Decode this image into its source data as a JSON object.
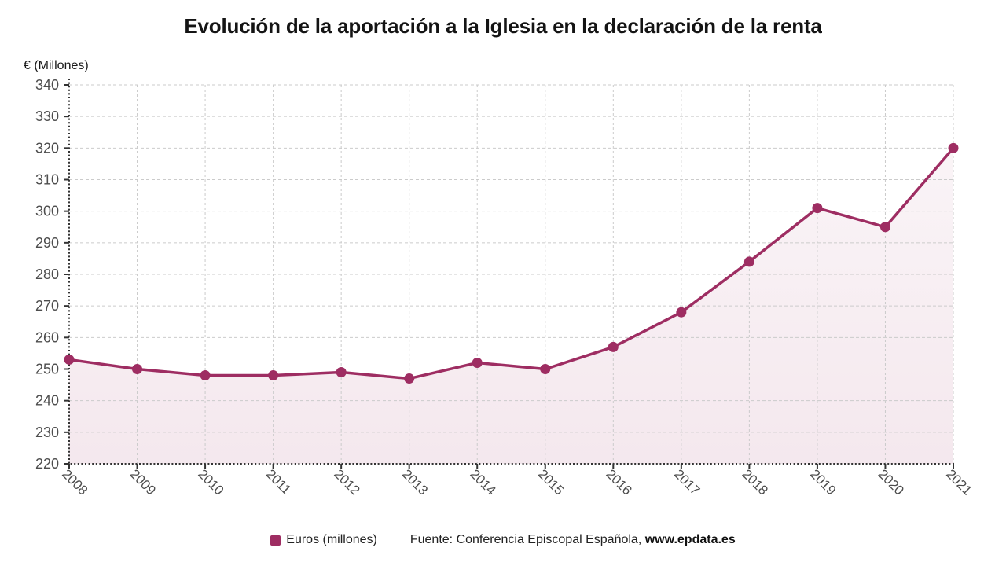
{
  "title": "Evolución de la aportación a la Iglesia en la declaración de la renta",
  "y_axis_title": "€ (Millones)",
  "legend": {
    "label": "Euros (millones)"
  },
  "source": {
    "prefix": "Fuente: Conferencia Episcopal Española, ",
    "link": "www.epdata.es"
  },
  "colors": {
    "series": "#9e2d62",
    "grid": "#cbcbcb",
    "axis": "#333333",
    "tick_label": "#4d4d4d",
    "area_top_opacity": 0.04,
    "area_bottom_opacity": 0.11
  },
  "chart_data": {
    "type": "line",
    "title": "Evolución de la aportación a la Iglesia en la declaración de la renta",
    "xlabel": "",
    "ylabel": "€ (Millones)",
    "categories": [
      "2008",
      "2009",
      "2010",
      "2011",
      "2012",
      "2013",
      "2014",
      "2015",
      "2016",
      "2017",
      "2018",
      "2019",
      "2020",
      "2021"
    ],
    "series": [
      {
        "name": "Euros (millones)",
        "values": [
          253,
          250,
          248,
          248,
          249,
          247,
          252,
          250,
          257,
          268,
          284,
          301,
          295,
          320
        ]
      }
    ],
    "ylim": [
      220,
      340
    ],
    "ytick_step": 10,
    "grid": true,
    "marker": "circle",
    "area_fill": true,
    "legend_position": "bottom"
  }
}
